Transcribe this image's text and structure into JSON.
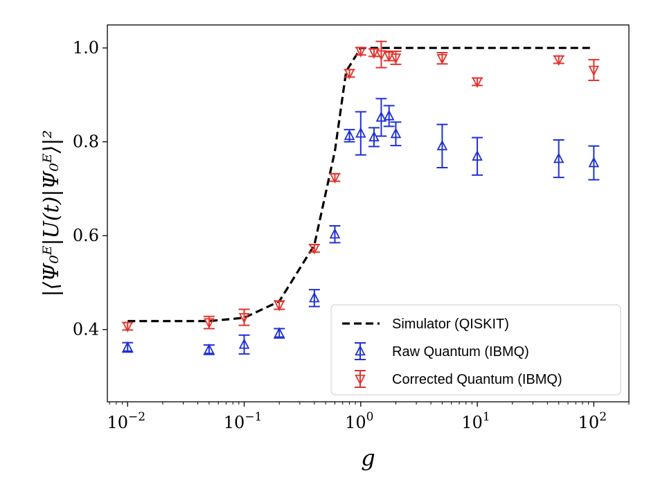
{
  "chart_data": {
    "type": "scatter",
    "xscale": "log",
    "xlabel": "g",
    "ylabel": "|⟨Ψ₀ᴱ|U(t)|Ψ₀ᴱ⟩|²",
    "xlim": [
      0.0067,
      200
    ],
    "ylim": [
      0.246,
      1.049
    ],
    "x_ticks": [
      {
        "value": 0.01,
        "base": "10",
        "exp": "−2"
      },
      {
        "value": 0.1,
        "base": "10",
        "exp": "−1"
      },
      {
        "value": 1,
        "base": "10",
        "exp": "0"
      },
      {
        "value": 10,
        "base": "10",
        "exp": "1"
      },
      {
        "value": 100,
        "base": "10",
        "exp": "2"
      }
    ],
    "y_ticks": [
      {
        "value": 0.4,
        "label": "0.4"
      },
      {
        "value": 0.6,
        "label": "0.6"
      },
      {
        "value": 0.8,
        "label": "0.8"
      },
      {
        "value": 1.0,
        "label": "1.0"
      }
    ],
    "legend_position": "bottom-right",
    "series": [
      {
        "name": "Simulator (QISKIT)",
        "style": "dashed-line",
        "color": "#000000",
        "x": [
          0.01,
          0.05,
          0.1,
          0.2,
          0.4,
          0.6,
          0.75,
          1.0,
          1.3,
          2,
          5,
          10,
          50,
          100
        ],
        "y": [
          0.418,
          0.418,
          0.425,
          0.46,
          0.58,
          0.78,
          0.95,
          1.0,
          1.0,
          1.0,
          1.0,
          1.0,
          1.0,
          1.0
        ]
      },
      {
        "name": "Raw Quantum (IBMQ)",
        "style": "up-triangle-errorbar",
        "color": "#1f2fd6",
        "x": [
          0.01,
          0.05,
          0.1,
          0.2,
          0.4,
          0.6,
          0.8,
          1.0,
          1.3,
          1.5,
          1.75,
          2.0,
          5,
          10,
          50,
          100
        ],
        "y": [
          0.362,
          0.357,
          0.368,
          0.392,
          0.467,
          0.603,
          0.813,
          0.818,
          0.81,
          0.852,
          0.855,
          0.817,
          0.791,
          0.769,
          0.764,
          0.755
        ],
        "err": [
          0.01,
          0.01,
          0.02,
          0.01,
          0.018,
          0.018,
          0.013,
          0.046,
          0.02,
          0.04,
          0.022,
          0.025,
          0.046,
          0.04,
          0.04,
          0.036
        ]
      },
      {
        "name": "Corrected Quantum (IBMQ)",
        "style": "down-triangle-errorbar",
        "color": "#e3322c",
        "x": [
          0.01,
          0.05,
          0.1,
          0.2,
          0.4,
          0.6,
          0.8,
          1.0,
          1.3,
          1.5,
          1.75,
          2.0,
          5,
          10,
          50,
          100
        ],
        "y": [
          0.407,
          0.415,
          0.426,
          0.452,
          0.573,
          0.724,
          0.946,
          0.993,
          0.99,
          0.986,
          0.983,
          0.979,
          0.978,
          0.928,
          0.975,
          0.953
        ],
        "err": [
          0.008,
          0.013,
          0.017,
          0.009,
          0.008,
          0.008,
          0.008,
          0.008,
          0.008,
          0.028,
          0.01,
          0.014,
          0.012,
          0.008,
          0.008,
          0.022
        ]
      }
    ]
  }
}
